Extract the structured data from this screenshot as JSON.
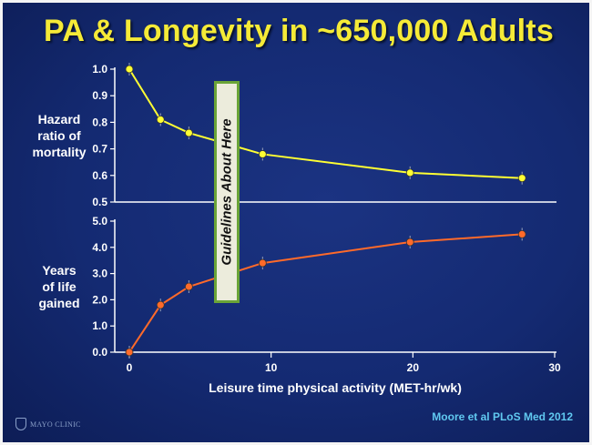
{
  "title": "PA & Longevity in ~650,000 Adults",
  "annotation": "Guidelines About Here",
  "citation": "Moore et al PLoS Med 2012",
  "logo_text": "MAYO CLINIC",
  "colors": {
    "title": "#f5ea37",
    "background": "#142a72",
    "series_hazard": "#ffff33",
    "series_years": "#ff6a2a",
    "guideline_border": "#6aa437"
  },
  "chart_data": [
    {
      "type": "line",
      "ylabel": [
        "Hazard",
        "ratio of",
        "mortality"
      ],
      "ylim": [
        0.5,
        1.0
      ],
      "yticks": [
        "1.0",
        "0.9",
        "0.8",
        "0.7",
        "0.6",
        "0.5"
      ],
      "series": [
        {
          "x": [
            0,
            2.2,
            4.2,
            9.4,
            19.8,
            27.7
          ],
          "values": [
            1.0,
            0.81,
            0.76,
            0.68,
            0.61,
            0.59
          ]
        }
      ]
    },
    {
      "type": "line",
      "ylabel": [
        "Years",
        "of life",
        "gained"
      ],
      "xlabel": "Leisure time physical activity (MET-hr/wk)",
      "xlim": [
        -1,
        30
      ],
      "xticks": [
        "0",
        "10",
        "20",
        "30"
      ],
      "ylim": [
        0,
        5
      ],
      "yticks": [
        "5.0",
        "4.0",
        "3.0",
        "2.0",
        "1.0",
        "0.0"
      ],
      "series": [
        {
          "x": [
            0,
            2.2,
            4.2,
            9.4,
            19.8,
            27.7
          ],
          "values": [
            0.0,
            1.8,
            2.5,
            3.4,
            4.2,
            4.5
          ]
        }
      ]
    }
  ]
}
